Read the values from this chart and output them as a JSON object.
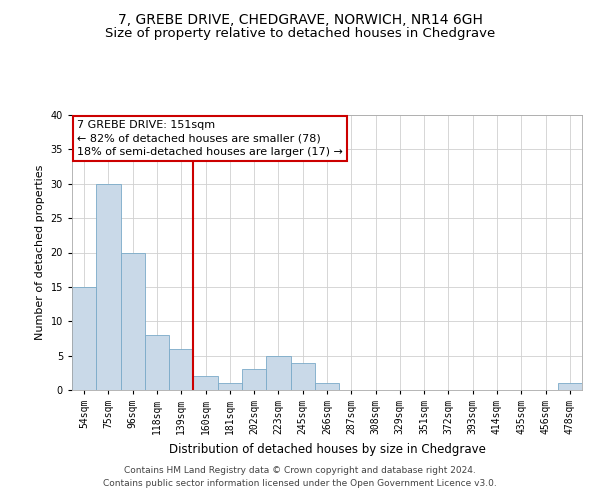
{
  "title": "7, GREBE DRIVE, CHEDGRAVE, NORWICH, NR14 6GH",
  "subtitle": "Size of property relative to detached houses in Chedgrave",
  "xlabel": "Distribution of detached houses by size in Chedgrave",
  "ylabel": "Number of detached properties",
  "categories": [
    "54sqm",
    "75sqm",
    "96sqm",
    "118sqm",
    "139sqm",
    "160sqm",
    "181sqm",
    "202sqm",
    "223sqm",
    "245sqm",
    "266sqm",
    "287sqm",
    "308sqm",
    "329sqm",
    "351sqm",
    "372sqm",
    "393sqm",
    "414sqm",
    "435sqm",
    "456sqm",
    "478sqm"
  ],
  "values": [
    15,
    30,
    20,
    8,
    6,
    2,
    1,
    3,
    5,
    4,
    1,
    0,
    0,
    0,
    0,
    0,
    0,
    0,
    0,
    0,
    1
  ],
  "bar_color": "#c9d9e8",
  "bar_edge_color": "#7aaac8",
  "grid_color": "#d0d0d0",
  "vline_index": 4.5,
  "vline_color": "#cc0000",
  "annotation_line1": "7 GREBE DRIVE: 151sqm",
  "annotation_line2": "← 82% of detached houses are smaller (78)",
  "annotation_line3": "18% of semi-detached houses are larger (17) →",
  "annotation_box_facecolor": "#ffffff",
  "annotation_box_edgecolor": "#cc0000",
  "ylim": [
    0,
    40
  ],
  "yticks": [
    0,
    5,
    10,
    15,
    20,
    25,
    30,
    35,
    40
  ],
  "footer_line1": "Contains HM Land Registry data © Crown copyright and database right 2024.",
  "footer_line2": "Contains public sector information licensed under the Open Government Licence v3.0.",
  "title_fontsize": 10,
  "subtitle_fontsize": 9.5,
  "ylabel_fontsize": 8,
  "xlabel_fontsize": 8.5,
  "tick_fontsize": 7,
  "annotation_fontsize": 8,
  "footer_fontsize": 6.5
}
